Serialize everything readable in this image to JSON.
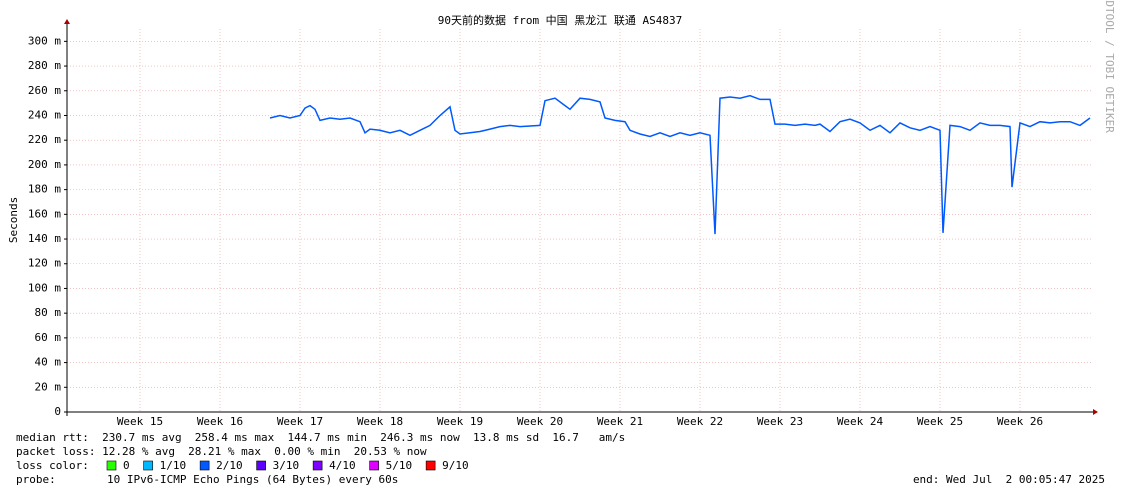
{
  "chart_data": {
    "type": "line",
    "title": "90天前的数据 from 中国 黑龙江 联通 AS4837",
    "y_label": "Seconds",
    "side_text": "RRDTOOL / TOBI OETIKER",
    "xlim": [
      14.5875,
      27.4125
    ],
    "xticks": [
      {
        "value": 15.5,
        "label": "Week 15"
      },
      {
        "value": 16.5,
        "label": "Week 16"
      },
      {
        "value": 17.5,
        "label": "Week 17"
      },
      {
        "value": 18.5,
        "label": "Week 18"
      },
      {
        "value": 19.5,
        "label": "Week 19"
      },
      {
        "value": 20.5,
        "label": "Week 20"
      },
      {
        "value": 21.5,
        "label": "Week 21"
      },
      {
        "value": 22.5,
        "label": "Week 22"
      },
      {
        "value": 23.5,
        "label": "Week 23"
      },
      {
        "value": 24.5,
        "label": "Week 24"
      },
      {
        "value": 25.5,
        "label": "Week 25"
      },
      {
        "value": 26.5,
        "label": "Week 26"
      }
    ],
    "ylim": [
      0,
      0.31
    ],
    "yticks": [
      0,
      {
        "value": 0.02,
        "label": "20 m"
      },
      {
        "value": 0.04,
        "label": "40 m"
      },
      {
        "value": 0.06,
        "label": "60 m"
      },
      {
        "value": 0.08,
        "label": "80 m"
      },
      {
        "value": 0.1,
        "label": "100 m"
      },
      {
        "value": 0.12,
        "label": "120 m"
      },
      {
        "value": 0.14,
        "label": "140 m"
      },
      {
        "value": 0.16,
        "label": "160 m"
      },
      {
        "value": 0.18,
        "label": "180 m"
      },
      {
        "value": 0.2,
        "label": "200 m"
      },
      {
        "value": 0.22,
        "label": "220 m"
      },
      {
        "value": 0.24,
        "label": "240 m"
      },
      {
        "value": 0.26,
        "label": "260 m"
      },
      {
        "value": 0.28,
        "label": "280 m"
      },
      {
        "value": 0.3,
        "label": "300 m"
      }
    ],
    "grid": true,
    "x": [
      17.125,
      17.25,
      17.375,
      17.5,
      17.5625,
      17.625,
      17.6875,
      17.75,
      17.875,
      18,
      18.125,
      18.25,
      18.3125,
      18.375,
      18.5,
      18.625,
      18.75,
      18.875,
      19,
      19.125,
      19.25,
      19.375,
      19.4375,
      19.5,
      19.625,
      19.75,
      19.875,
      20,
      20.125,
      20.25,
      20.5,
      20.5625,
      20.6875,
      20.8125,
      20.875,
      21,
      21.125,
      21.25,
      21.3125,
      21.4375,
      21.5625,
      21.625,
      21.75,
      21.875,
      22,
      22.125,
      22.25,
      22.375,
      22.5,
      22.625,
      22.6875,
      22.75,
      22.875,
      23,
      23.125,
      23.25,
      23.375,
      23.4375,
      23.5625,
      23.6875,
      23.8125,
      23.9375,
      24,
      24.125,
      24.25,
      24.375,
      24.5,
      24.625,
      24.75,
      24.875,
      25,
      25.125,
      25.25,
      25.375,
      25.5,
      25.5375,
      25.625,
      25.75,
      25.875,
      26,
      26.125,
      26.25,
      26.375,
      26.4,
      26.5,
      26.625,
      26.75,
      26.875,
      27,
      27.125,
      27.25,
      27.375
    ],
    "series": [
      {
        "name": "median rtt",
        "color": "#0059ff",
        "values": [
          0.238,
          0.24,
          0.238,
          0.24,
          0.246,
          0.248,
          0.245,
          0.236,
          0.238,
          0.237,
          0.238,
          0.235,
          0.226,
          0.229,
          0.228,
          0.226,
          0.228,
          0.224,
          0.228,
          0.232,
          0.24,
          0.247,
          0.228,
          0.225,
          0.226,
          0.227,
          0.229,
          0.231,
          0.232,
          0.231,
          0.232,
          0.252,
          0.254,
          0.248,
          0.245,
          0.254,
          0.253,
          0.251,
          0.238,
          0.236,
          0.235,
          0.228,
          0.225,
          0.223,
          0.226,
          0.223,
          0.226,
          0.224,
          0.226,
          0.224,
          0.144,
          0.254,
          0.255,
          0.254,
          0.256,
          0.253,
          0.253,
          0.233,
          0.233,
          0.232,
          0.233,
          0.232,
          0.233,
          0.227,
          0.235,
          0.237,
          0.234,
          0.228,
          0.232,
          0.226,
          0.234,
          0.23,
          0.228,
          0.231,
          0.228,
          0.145,
          0.232,
          0.231,
          0.228,
          0.234,
          0.232,
          0.232,
          0.231,
          0.182,
          0.234,
          0.231,
          0.235,
          0.234,
          0.235,
          0.235,
          0.232,
          0.238
        ]
      }
    ],
    "stats": [
      "median rtt:  230.7 ms avg  258.4 ms max  144.7 ms min  246.3 ms now  13.8 ms sd  16.7   am/s",
      "packet loss: 12.28 % avg  28.21 % max  0.00 % min  20.53 % now"
    ],
    "loss_color_label": "loss color:",
    "loss_colors": [
      {
        "label": "0",
        "color": "#26ff00"
      },
      {
        "label": "1/10",
        "color": "#00b8ff"
      },
      {
        "label": "2/10",
        "color": "#0059ff"
      },
      {
        "label": "3/10",
        "color": "#5e00ff"
      },
      {
        "label": "4/10",
        "color": "#7e00ff"
      },
      {
        "label": "5/10",
        "color": "#dd00ff"
      },
      {
        "label": "9/10",
        "color": "#ff0000"
      }
    ],
    "probe_label": "probe:",
    "probe": "10 IPv6-ICMP Echo Pings (64 Bytes) every 60s",
    "end": "end: Wed Jul  2 00:05:47 2025"
  }
}
